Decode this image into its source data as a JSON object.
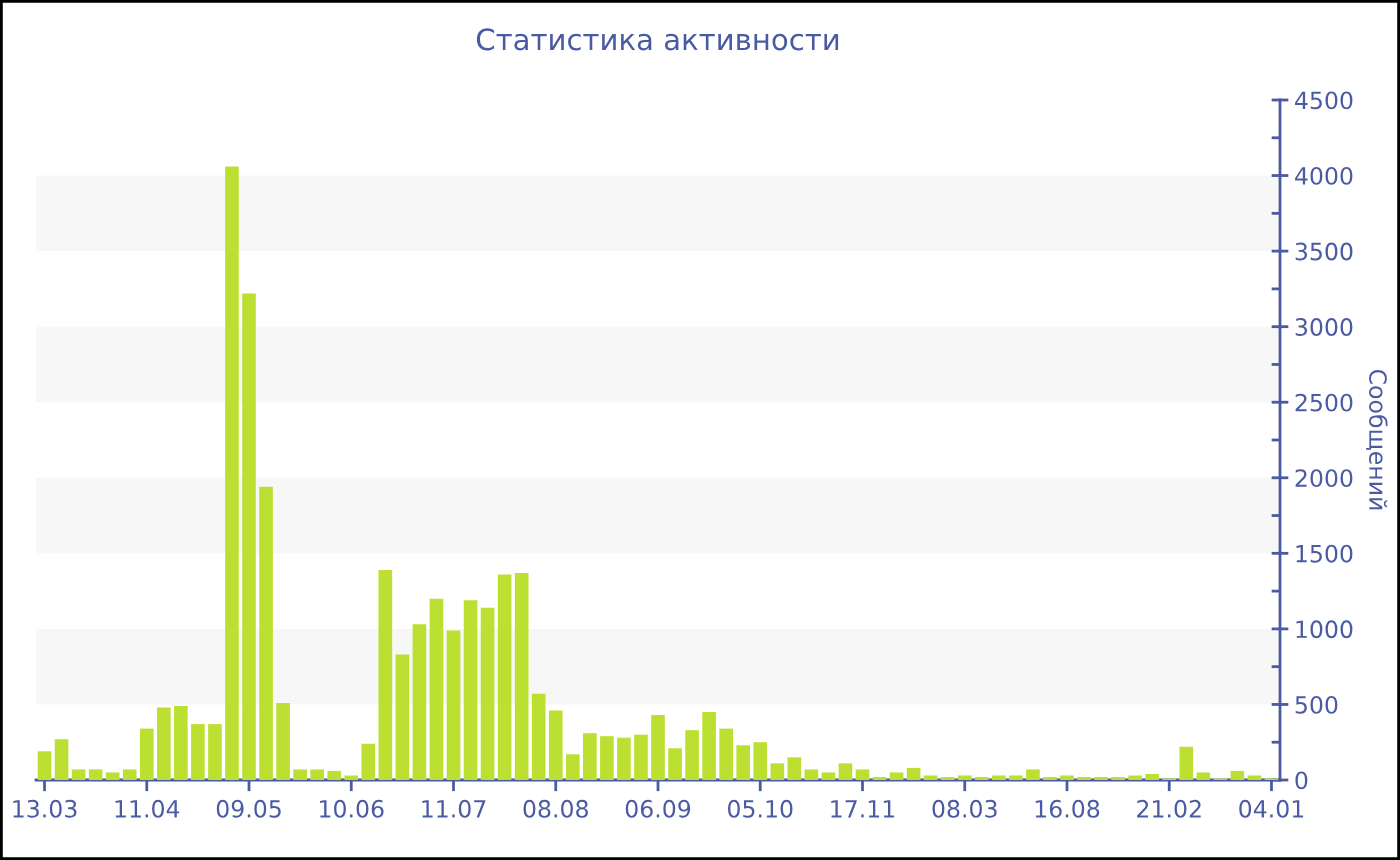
{
  "chart_data": {
    "type": "bar",
    "title": "Статистика активности",
    "ylabel": "Сообщений",
    "categories": [
      "13.03",
      null,
      null,
      null,
      null,
      null,
      "11.04",
      null,
      null,
      null,
      null,
      null,
      "09.05",
      null,
      null,
      null,
      null,
      null,
      "10.06",
      null,
      null,
      null,
      null,
      null,
      "11.07",
      null,
      null,
      null,
      null,
      null,
      "08.08",
      null,
      null,
      null,
      null,
      null,
      "06.09",
      null,
      null,
      null,
      null,
      null,
      "05.10",
      null,
      null,
      null,
      null,
      null,
      "17.11",
      null,
      null,
      null,
      null,
      null,
      "08.03",
      null,
      null,
      null,
      null,
      null,
      "16.08",
      null,
      null,
      null,
      null,
      null,
      "21.02",
      null,
      null,
      null,
      null,
      null,
      "04.01"
    ],
    "values": [
      190,
      270,
      70,
      70,
      50,
      70,
      340,
      480,
      490,
      370,
      370,
      4060,
      3220,
      1940,
      510,
      70,
      70,
      60,
      30,
      240,
      1390,
      830,
      1030,
      1200,
      990,
      1190,
      1140,
      1360,
      1370,
      570,
      460,
      170,
      310,
      290,
      280,
      300,
      430,
      210,
      330,
      450,
      340,
      230,
      250,
      110,
      150,
      70,
      50,
      110,
      70,
      20,
      50,
      80,
      30,
      20,
      30,
      20,
      30,
      30,
      70,
      20,
      30,
      20,
      20,
      20,
      30,
      40,
      10,
      220,
      50,
      10,
      60,
      30,
      10
    ],
    "color": "#bce032",
    "ylim": [
      0,
      4500
    ],
    "yticks": [
      0,
      {
        "value": 250,
        "label": null
      },
      500,
      {
        "value": 750,
        "label": null
      },
      1000,
      {
        "value": 1250,
        "label": null
      },
      1500,
      {
        "value": 1750,
        "label": null
      },
      2000,
      {
        "value": 2250,
        "label": null
      },
      2500,
      {
        "value": 2750,
        "label": null
      },
      3000,
      {
        "value": 3250,
        "label": null
      },
      3500,
      {
        "value": 3750,
        "label": null
      },
      4000,
      {
        "value": 4250,
        "label": null
      },
      4500
    ],
    "bands": [
      {
        "axis": "y",
        "from": 500,
        "to": 1000,
        "color": "#f7f7f7"
      },
      {
        "axis": "y",
        "from": 1500,
        "to": 2000,
        "color": "#f7f7f7"
      },
      {
        "axis": "y",
        "from": 2500,
        "to": 3000,
        "color": "#f7f7f7"
      },
      {
        "axis": "y",
        "from": 3500,
        "to": 4000,
        "color": "#f7f7f7"
      }
    ]
  }
}
